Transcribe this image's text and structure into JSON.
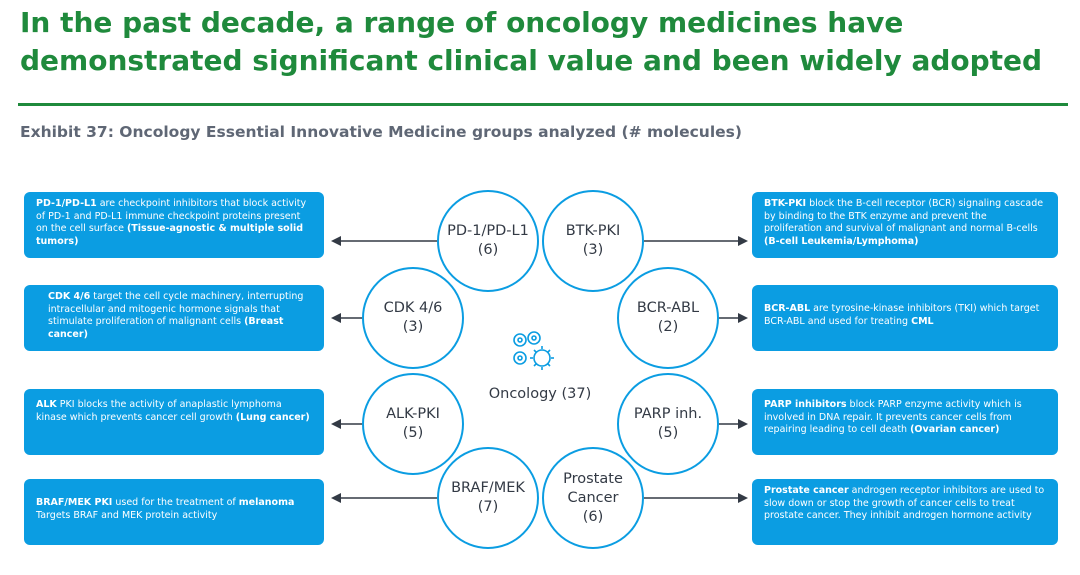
{
  "title": {
    "line1": "In the past decade, a range of oncology medicines have",
    "line2": "demonstrated significant clinical value and been widely adopted"
  },
  "exhibit": "Exhibit 37: Oncology Essential Innovative Medicine groups analyzed (# molecules)",
  "center": {
    "label": "Oncology (37)",
    "icon": "virus-cell-icon"
  },
  "colors": {
    "title_green": "#1f8a3c",
    "accent_blue": "#0b9de2",
    "text_dark": "#333a45",
    "subtitle_gray": "#5f6775"
  },
  "groups": {
    "pd1": {
      "name": "PD-1/PD-L1",
      "count": "(6)"
    },
    "btk": {
      "name": "BTK-PKI",
      "count": "(3)"
    },
    "cdk": {
      "name": "CDK 4/6",
      "count": "(3)"
    },
    "bcr": {
      "name": "BCR-ABL",
      "count": "(2)"
    },
    "alk": {
      "name": "ALK-PKI",
      "count": "(5)"
    },
    "parp": {
      "name": "PARP inh.",
      "count": "(5)"
    },
    "braf": {
      "name": "BRAF/MEK",
      "count": "(7)"
    },
    "prostate": {
      "name1": "Prostate",
      "name2": "Cancer",
      "count": "(6)"
    }
  },
  "descriptions": {
    "pd1": {
      "bold": "PD-1/PD-L1",
      "text": " are checkpoint inhibitors that block activity of PD-1 and PD-L1 immune checkpoint proteins present on the cell surface ",
      "bold_end": "(Tissue-agnostic & multiple solid tumors)"
    },
    "cdk": {
      "bold": "CDK 4/6",
      "text": " target the cell cycle machinery, interrupting intracellular and mitogenic hormone signals that stimulate proliferation of malignant cells ",
      "bold_end": "(Breast cancer)"
    },
    "alk": {
      "bold": "ALK",
      "text": " PKI blocks the activity of anaplastic lymphoma kinase which prevents cancer cell growth ",
      "bold_end": "(Lung cancer)"
    },
    "braf": {
      "bold": "BRAF/MEK PKI",
      "text": " used for the treatment of ",
      "bold_mid": "melanoma",
      "text2": " Targets BRAF and MEK protein activity"
    },
    "btk": {
      "bold": "BTK-PKI",
      "text": " block the B-cell receptor (BCR) signaling cascade by binding to the BTK enzyme and prevent the proliferation and survival of malignant and normal B-cells ",
      "bold_end": "(B-cell Leukemia/Lymphoma)"
    },
    "bcr": {
      "bold": "BCR-ABL",
      "text": " are tyrosine-kinase inhibitors (TKI) which target BCR-ABL and used for treating ",
      "bold_end": "CML"
    },
    "parp": {
      "bold": "PARP inhibitors",
      "text": " block PARP enzyme activity which is involved in DNA repair. It prevents cancer cells from repairing leading to cell death ",
      "bold_end": "(Ovarian cancer)"
    },
    "prostate": {
      "bold": "Prostate cancer",
      "text": " androgen receptor inhibitors are used to slow down or stop the growth of cancer cells to treat prostate cancer. They inhibit androgen hormone activity"
    }
  }
}
